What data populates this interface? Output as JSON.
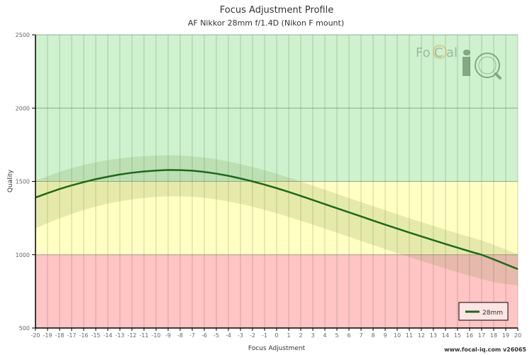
{
  "header": {
    "title": "Focus Adjustment Profile",
    "subtitle": "AF Nikkor 28mm f/1.4D (Nikon F mount)"
  },
  "footer": {
    "text": "www.focal-iq.com  v26065"
  },
  "logo": {
    "text_left": "Fo",
    "text_c": "C",
    "text_right": "al",
    "text_iq": "iQ"
  },
  "colors": {
    "zone_good": "#cdf2cd",
    "zone_ok": "#ffffc4",
    "zone_bad": "#ffc4c4",
    "line": "#1a6b1a",
    "band": "rgba(110,140,60,0.18)"
  },
  "chart_data": {
    "type": "line",
    "title": "Focus Adjustment Profile",
    "subtitle": "AF Nikkor 28mm f/1.4D (Nikon F mount)",
    "xlabel": "Focus Adjustment",
    "ylabel": "Quality",
    "xlim": [
      -20,
      20
    ],
    "ylim": [
      500,
      2500
    ],
    "x_ticks": [
      -20,
      -19,
      -18,
      -17,
      -16,
      -15,
      -14,
      -13,
      -12,
      -11,
      -10,
      -9,
      -8,
      -7,
      -6,
      -5,
      -4,
      -3,
      -2,
      -1,
      0,
      1,
      2,
      3,
      4,
      5,
      6,
      7,
      8,
      9,
      10,
      11,
      12,
      13,
      14,
      15,
      16,
      17,
      18,
      19,
      20
    ],
    "y_ticks": [
      500,
      1000,
      1500,
      2000,
      2500
    ],
    "grid": true,
    "legend_position": "bottom-right",
    "zones": [
      {
        "name": "good",
        "from": 1500,
        "to": 2500,
        "color": "#cdf2cd"
      },
      {
        "name": "ok",
        "from": 1000,
        "to": 1500,
        "color": "#ffffc4"
      },
      {
        "name": "bad",
        "from": 500,
        "to": 1000,
        "color": "#ffc4c4"
      }
    ],
    "x": [
      -20,
      -19,
      -18,
      -17,
      -16,
      -15,
      -14,
      -13,
      -12,
      -11,
      -10,
      -9,
      -8,
      -7,
      -6,
      -5,
      -4,
      -3,
      -2,
      -1,
      0,
      1,
      2,
      3,
      4,
      5,
      6,
      7,
      8,
      9,
      10,
      11,
      12,
      13,
      14,
      15,
      16,
      17,
      18,
      19,
      20
    ],
    "series": [
      {
        "name": "28mm",
        "values": [
          1390,
          1420,
          1448,
          1473,
          1495,
          1515,
          1532,
          1547,
          1559,
          1568,
          1574,
          1578,
          1577,
          1573,
          1565,
          1553,
          1538,
          1520,
          1500,
          1478,
          1454,
          1428,
          1401,
          1373,
          1345,
          1317,
          1289,
          1261,
          1233,
          1205,
          1178,
          1151,
          1125,
          1099,
          1073,
          1048,
          1023,
          1000,
          968,
          935,
          902
        ],
        "band_upper": [
          1505,
          1535,
          1565,
          1590,
          1612,
          1630,
          1645,
          1657,
          1666,
          1672,
          1676,
          1678,
          1676,
          1671,
          1663,
          1651,
          1636,
          1618,
          1598,
          1576,
          1552,
          1526,
          1499,
          1471,
          1443,
          1415,
          1387,
          1359,
          1331,
          1303,
          1276,
          1249,
          1223,
          1197,
          1171,
          1146,
          1121,
          1098,
          1068,
          1036,
          1004
        ],
        "band_lower": [
          1180,
          1215,
          1248,
          1278,
          1305,
          1328,
          1348,
          1364,
          1377,
          1387,
          1394,
          1398,
          1398,
          1395,
          1388,
          1377,
          1363,
          1346,
          1327,
          1306,
          1283,
          1258,
          1232,
          1205,
          1178,
          1150,
          1122,
          1094,
          1066,
          1038,
          1011,
          984,
          958,
          932,
          906,
          881,
          857,
          835,
          813,
          800,
          790
        ]
      }
    ]
  }
}
